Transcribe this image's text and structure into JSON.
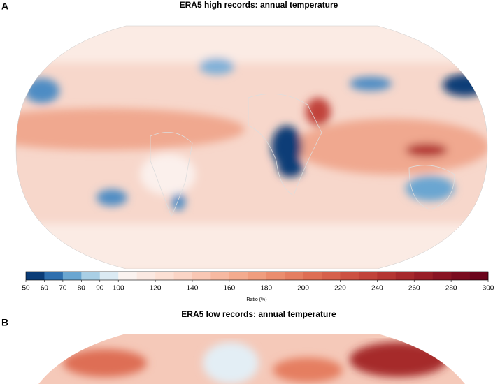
{
  "panels": [
    {
      "label": "A",
      "title": "ERA5 high records: annual temperature"
    },
    {
      "label": "B",
      "title": "ERA5 low records: annual temperature"
    }
  ],
  "colorbar": {
    "label": "Ratio (%)",
    "lim": [
      50,
      300
    ],
    "ticks": [
      50,
      60,
      70,
      80,
      90,
      100,
      120,
      140,
      160,
      180,
      200,
      220,
      240,
      260,
      280,
      300
    ],
    "colors": [
      "#0b3c77",
      "#2f6fae",
      "#6aa6d1",
      "#a9cfe5",
      "#dbeaf3",
      "#fbf3f0",
      "#fbe9e2",
      "#fce0d4",
      "#fbd5c6",
      "#f9c7b4",
      "#f7b9a1",
      "#f4ab8e",
      "#f09d7e",
      "#eb8d6e",
      "#e57e61",
      "#de6e54",
      "#d6604b",
      "#cc5142",
      "#c1433a",
      "#b43532",
      "#a6292c",
      "#981e27",
      "#891423",
      "#7a0c1f",
      "#6b041b"
    ]
  }
}
